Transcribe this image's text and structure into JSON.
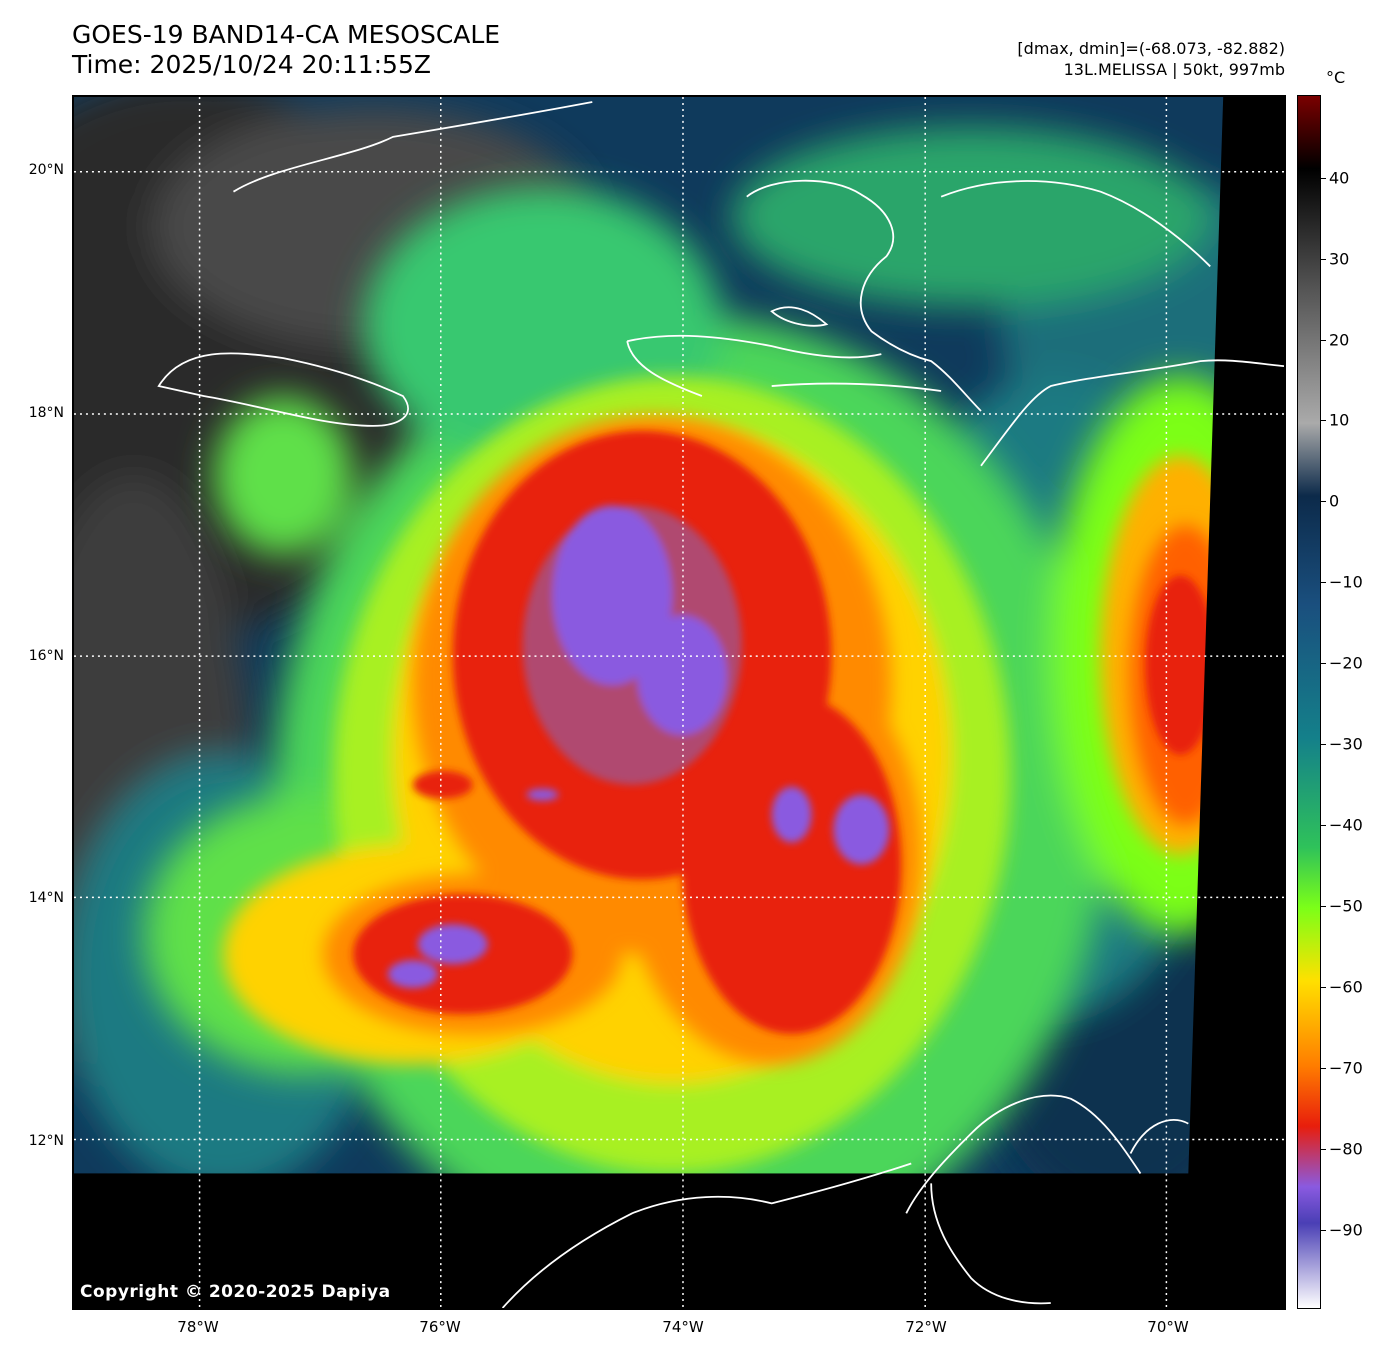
{
  "header": {
    "title_line1": "GOES-19 BAND14-CA MESOSCALE",
    "title_line2": "Time: 2025/10/24 20:11:55Z",
    "range_text": "[dmax, dmin]=(-68.073, -82.882)",
    "storm_text": "13L.MELISSA | 50kt, 997mb"
  },
  "map": {
    "copyright": "Copyright © 2020-2025 Dapiya",
    "lat_labels": [
      "20°N",
      "18°N",
      "16°N",
      "14°N",
      "12°N"
    ],
    "lon_labels": [
      "78°W",
      "76°W",
      "74°W",
      "72°W",
      "70°W"
    ],
    "coastline_color": "#ffffff",
    "gridline_style": "dotted white"
  },
  "colorbar": {
    "unit": "°C",
    "tick_labels": [
      "40",
      "30",
      "20",
      "10",
      "0",
      "−10",
      "−20",
      "−30",
      "−40",
      "−50",
      "−60",
      "−70",
      "−80",
      "−90"
    ],
    "colors": [
      "#7a0000",
      "#000000",
      "#555555",
      "#aaaaaa",
      "#0c2a4a",
      "#1a4f7e",
      "#14808a",
      "#2fc25a",
      "#7cff18",
      "#ffe000",
      "#ff7d00",
      "#e81e0c",
      "#8a5ae0",
      "#4a3fb5",
      "#ffffff"
    ]
  }
}
